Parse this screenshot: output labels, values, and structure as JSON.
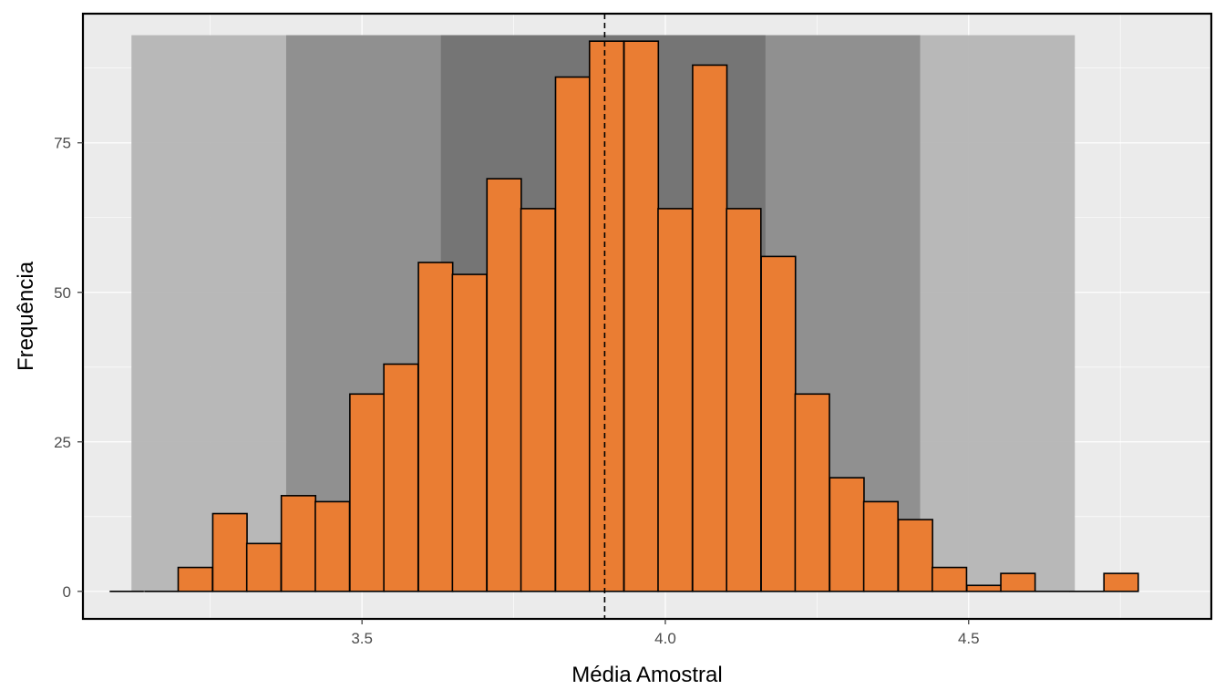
{
  "chart_data": {
    "type": "bar",
    "subtype": "histogram",
    "xlabel": "Média Amostral",
    "ylabel": "Frequência",
    "xlim": [
      3.04,
      4.9
    ],
    "ylim": [
      -4.6,
      96.6
    ],
    "x_ticks": [
      {
        "value": 3.5,
        "label": "3.5"
      },
      {
        "value": 4.0,
        "label": "4.0"
      },
      {
        "value": 4.5,
        "label": "4.5"
      }
    ],
    "y_ticks": [
      {
        "value": 0,
        "label": "0"
      },
      {
        "value": 25,
        "label": "25"
      },
      {
        "value": 50,
        "label": "50"
      },
      {
        "value": 75,
        "label": "75"
      }
    ],
    "bin_width": 0.0565,
    "bins": [
      {
        "x_start": 3.084,
        "count": 0
      },
      {
        "x_start": 3.141,
        "count": 0
      },
      {
        "x_start": 3.197,
        "count": 4
      },
      {
        "x_start": 3.254,
        "count": 13
      },
      {
        "x_start": 3.31,
        "count": 8
      },
      {
        "x_start": 3.367,
        "count": 16
      },
      {
        "x_start": 3.423,
        "count": 15
      },
      {
        "x_start": 3.48,
        "count": 33
      },
      {
        "x_start": 3.536,
        "count": 38
      },
      {
        "x_start": 3.593,
        "count": 55
      },
      {
        "x_start": 3.649,
        "count": 53
      },
      {
        "x_start": 3.706,
        "count": 69
      },
      {
        "x_start": 3.762,
        "count": 64
      },
      {
        "x_start": 3.819,
        "count": 86
      },
      {
        "x_start": 3.875,
        "count": 92
      },
      {
        "x_start": 3.932,
        "count": 92
      },
      {
        "x_start": 3.988,
        "count": 64
      },
      {
        "x_start": 4.045,
        "count": 88
      },
      {
        "x_start": 4.101,
        "count": 64
      },
      {
        "x_start": 4.158,
        "count": 56
      },
      {
        "x_start": 4.214,
        "count": 33
      },
      {
        "x_start": 4.271,
        "count": 19
      },
      {
        "x_start": 4.327,
        "count": 15
      },
      {
        "x_start": 4.384,
        "count": 12
      },
      {
        "x_start": 4.44,
        "count": 4
      },
      {
        "x_start": 4.497,
        "count": 1
      },
      {
        "x_start": 4.553,
        "count": 3
      },
      {
        "x_start": 4.61,
        "count": 0
      },
      {
        "x_start": 4.666,
        "count": 0
      },
      {
        "x_start": 4.723,
        "count": 3
      }
    ],
    "shaded_bands": [
      {
        "x_range": [
          3.12,
          4.675
        ],
        "y_top": 93,
        "color": "#b3b3b3"
      },
      {
        "x_range": [
          3.375,
          4.42
        ],
        "y_top": 93,
        "color": "#8c8c8c"
      },
      {
        "x_range": [
          3.63,
          4.165
        ],
        "y_top": 93,
        "color": "#737373"
      }
    ],
    "reference_line": {
      "x": 3.9,
      "style": "dashed",
      "color": "#000000"
    },
    "colors": {
      "bar_fill": "#ea7d33",
      "bar_outline": "#000000",
      "panel_background": "#ebebeb",
      "grid": "#ffffff",
      "panel_border": "#000000"
    },
    "grid": true,
    "legend": "none"
  }
}
